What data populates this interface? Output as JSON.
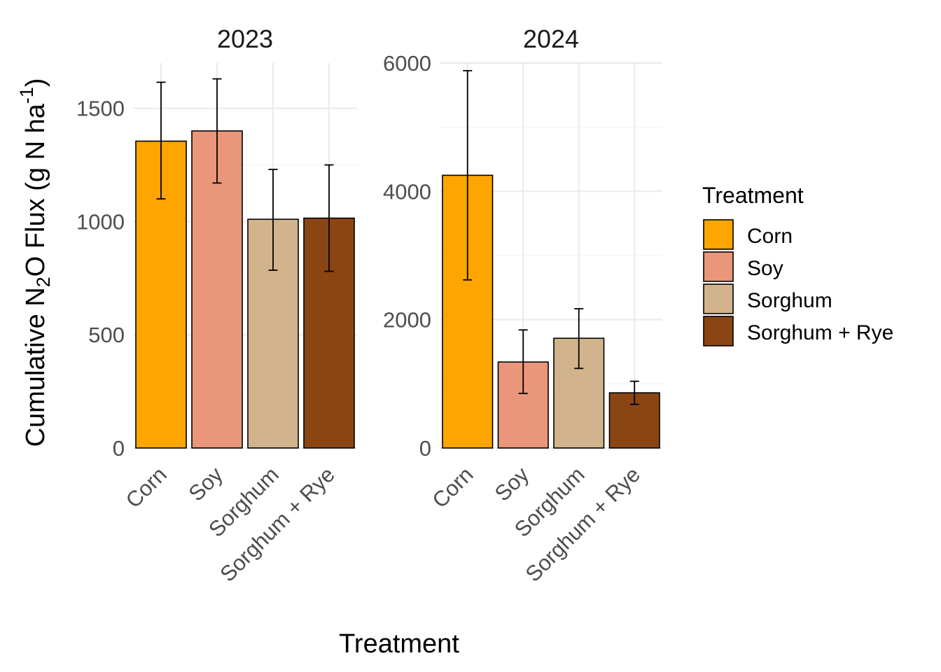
{
  "chart_data": {
    "type": "bar",
    "xlabel": "Treatment",
    "ylabel": "Cumulative N2O Flux (g N ha-1)",
    "ylabel_parts": {
      "prefix": "Cumulative N",
      "sub": "2",
      "mid": "O Flux (g N ha",
      "sup": "-1",
      "suffix": ")"
    },
    "legend": {
      "title": "Treatment",
      "position": "right",
      "items": [
        {
          "label": "Corn",
          "color": "#FFA500"
        },
        {
          "label": "Soy",
          "color": "#E9967A"
        },
        {
          "label": "Sorghum",
          "color": "#D2B48C"
        },
        {
          "label": "Sorghum + Rye",
          "color": "#8B4513"
        }
      ]
    },
    "categories": [
      "Corn",
      "Soy",
      "Sorghum",
      "Sorghum + Rye"
    ],
    "grid": true,
    "panels": [
      {
        "title": "2023",
        "ylim": [
          0,
          1700
        ],
        "yticks": [
          0,
          500,
          1000,
          1500
        ],
        "tick_labels": [
          "0",
          "500",
          "1000",
          "1500"
        ],
        "values": [
          1355,
          1400,
          1010,
          1015
        ],
        "err_low": [
          1100,
          1170,
          785,
          780
        ],
        "err_high": [
          1615,
          1630,
          1230,
          1250
        ]
      },
      {
        "title": "2024",
        "ylim": [
          0,
          6000
        ],
        "yticks": [
          0,
          2000,
          4000,
          6000
        ],
        "tick_labels": [
          "0",
          "2000",
          "4000",
          "6000"
        ],
        "values": [
          4250,
          1340,
          1710,
          860
        ],
        "err_low": [
          2620,
          850,
          1240,
          680
        ],
        "err_high": [
          5880,
          1840,
          2170,
          1040
        ]
      }
    ]
  }
}
